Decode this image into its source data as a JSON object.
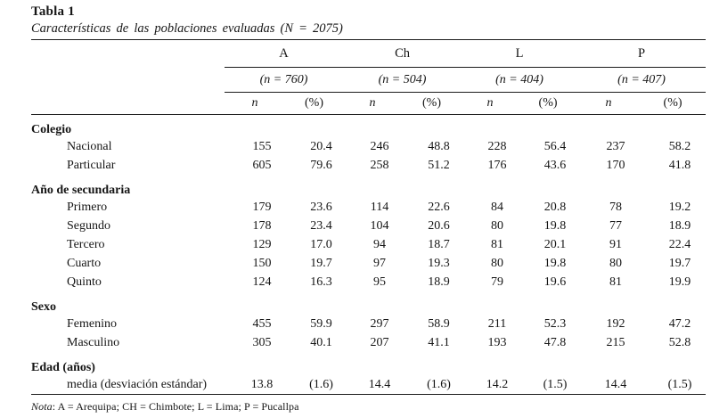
{
  "title": "Tabla 1",
  "subtitle": "Características de las poblaciones evaluadas (N = 2075)",
  "colors": {
    "text": "#161616",
    "background": "#ffffff",
    "rule": "#1c1c1c"
  },
  "table": {
    "groups": [
      {
        "label": "A",
        "n_label": "(n = 760)"
      },
      {
        "label": "Ch",
        "n_label": "(n = 504)"
      },
      {
        "label": "L",
        "n_label": "(n = 404)"
      },
      {
        "label": "P",
        "n_label": "(n = 407)"
      }
    ],
    "subheaders": {
      "n": "n",
      "pct": "(%)"
    },
    "sections": [
      {
        "header": "Colegio",
        "rows": [
          {
            "label": "Nacional",
            "values": [
              "155",
              "20.4",
              "246",
              "48.8",
              "228",
              "56.4",
              "237",
              "58.2"
            ]
          },
          {
            "label": "Particular",
            "values": [
              "605",
              "79.6",
              "258",
              "51.2",
              "176",
              "43.6",
              "170",
              "41.8"
            ]
          }
        ]
      },
      {
        "header": "Año de secundaria",
        "rows": [
          {
            "label": "Primero",
            "values": [
              "179",
              "23.6",
              "114",
              "22.6",
              "84",
              "20.8",
              "78",
              "19.2"
            ]
          },
          {
            "label": "Segundo",
            "values": [
              "178",
              "23.4",
              "104",
              "20.6",
              "80",
              "19.8",
              "77",
              "18.9"
            ]
          },
          {
            "label": "Tercero",
            "values": [
              "129",
              "17.0",
              "94",
              "18.7",
              "81",
              "20.1",
              "91",
              "22.4"
            ]
          },
          {
            "label": "Cuarto",
            "values": [
              "150",
              "19.7",
              "97",
              "19.3",
              "80",
              "19.8",
              "80",
              "19.7"
            ]
          },
          {
            "label": "Quinto",
            "values": [
              "124",
              "16.3",
              "95",
              "18.9",
              "79",
              "19.6",
              "81",
              "19.9"
            ]
          }
        ]
      },
      {
        "header": "Sexo",
        "rows": [
          {
            "label": "Femenino",
            "values": [
              "455",
              "59.9",
              "297",
              "58.9",
              "211",
              "52.3",
              "192",
              "47.2"
            ]
          },
          {
            "label": "Masculino",
            "values": [
              "305",
              "40.1",
              "207",
              "41.1",
              "193",
              "47.8",
              "215",
              "52.8"
            ]
          }
        ]
      },
      {
        "header": "Edad (años)",
        "rows": [
          {
            "label": "media (desviación estándar)",
            "values": [
              "13.8",
              "(1.6)",
              "14.4",
              "(1.6)",
              "14.2",
              "(1.5)",
              "14.4",
              "(1.5)"
            ]
          }
        ]
      }
    ]
  },
  "note": {
    "prefix": "Nota",
    "text": ": A = Arequipa; CH = Chimbote; L = Lima; P = Pucallpa"
  }
}
